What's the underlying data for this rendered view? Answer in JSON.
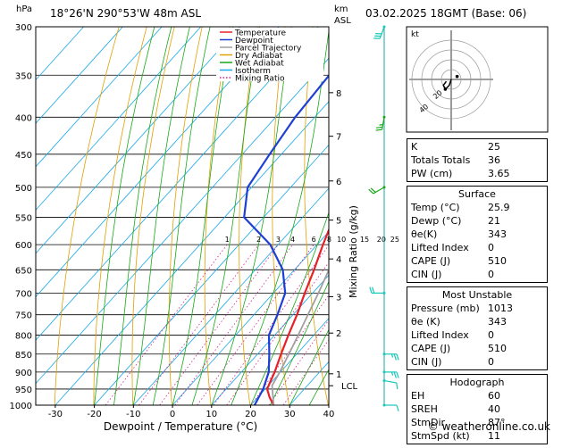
{
  "header": {
    "hpa_label": "hPa",
    "location": "18°26'N  290°53'W  48m  ASL",
    "km_label": "km",
    "asl_label": "ASL",
    "datetime": "03.02.2025  18GMT  (Base: 06)"
  },
  "chart_data": {
    "type": "line",
    "chart_kind": "skew-T log-P sounding",
    "xlabel": "Dewpoint / Temperature (°C)",
    "ylabel_right": "Mixing Ratio (g/kg)",
    "xlim": [
      -35,
      40
    ],
    "ylim_hpa": [
      1000,
      300
    ],
    "pressure_ticks": [
      300,
      350,
      400,
      450,
      500,
      550,
      600,
      650,
      700,
      750,
      800,
      850,
      900,
      950,
      1000
    ],
    "temperature_ticks": [
      -30,
      -20,
      -10,
      0,
      10,
      20,
      30,
      40
    ],
    "height_km_ticks": [
      {
        "km": "1",
        "p": 905
      },
      {
        "km": "2",
        "p": 795
      },
      {
        "km": "3",
        "p": 708
      },
      {
        "km": "4",
        "p": 628
      },
      {
        "km": "5",
        "p": 555
      },
      {
        "km": "6",
        "p": 490
      },
      {
        "km": "7",
        "p": 425
      },
      {
        "km": "8",
        "p": 370
      }
    ],
    "lcl": {
      "label": "LCL",
      "p": 940
    },
    "mixing_ratio_labels": [
      "1",
      "2",
      "3",
      "4",
      "6",
      "8",
      "10",
      "15",
      "20",
      "25"
    ],
    "mixing_ratio_values": [
      1,
      2,
      3,
      4,
      6,
      8,
      10,
      15,
      20,
      25
    ],
    "legend": [
      {
        "name": "Temperature",
        "color": "#e8202a"
      },
      {
        "name": "Dewpoint",
        "color": "#1f3fd4"
      },
      {
        "name": "Parcel Trajectory",
        "color": "#a0a0a0"
      },
      {
        "name": "Dry Adiabat",
        "color": "#e0a000"
      },
      {
        "name": "Wet Adiabat",
        "color": "#18a818"
      },
      {
        "name": "Isotherm",
        "color": "#18a8e8"
      },
      {
        "name": "Mixing Ratio",
        "color": "#d8208c"
      }
    ],
    "series": [
      {
        "name": "Temperature",
        "color": "#e8202a",
        "points": [
          [
            1000,
            25.9
          ],
          [
            975,
            23
          ],
          [
            950,
            20.5
          ],
          [
            925,
            19.5
          ],
          [
            900,
            18.5
          ],
          [
            850,
            16
          ],
          [
            800,
            13.5
          ],
          [
            750,
            11
          ],
          [
            700,
            8
          ],
          [
            650,
            5
          ],
          [
            600,
            1.5
          ],
          [
            550,
            -2
          ],
          [
            500,
            -6
          ],
          [
            450,
            -11
          ],
          [
            400,
            -17
          ],
          [
            350,
            -24
          ],
          [
            300,
            -32
          ]
        ]
      },
      {
        "name": "Dewpoint",
        "color": "#1f3fd4",
        "points": [
          [
            1000,
            21
          ],
          [
            950,
            19.5
          ],
          [
            900,
            17
          ],
          [
            850,
            13
          ],
          [
            800,
            8.5
          ],
          [
            750,
            6
          ],
          [
            700,
            3
          ],
          [
            650,
            -3
          ],
          [
            600,
            -12
          ],
          [
            550,
            -25
          ],
          [
            500,
            -31
          ],
          [
            450,
            -33
          ],
          [
            400,
            -35
          ],
          [
            350,
            -36
          ],
          [
            300,
            -38
          ]
        ]
      },
      {
        "name": "Parcel Trajectory",
        "color": "#a0a0a0",
        "points": [
          [
            1000,
            25.9
          ],
          [
            940,
            21
          ],
          [
            900,
            19.8
          ],
          [
            850,
            18
          ],
          [
            800,
            16
          ],
          [
            750,
            13.8
          ],
          [
            700,
            11.5
          ],
          [
            650,
            8.8
          ],
          [
            600,
            5.8
          ],
          [
            550,
            2.5
          ],
          [
            500,
            -1.5
          ],
          [
            450,
            -6
          ],
          [
            400,
            -11.5
          ],
          [
            350,
            -18
          ],
          [
            300,
            -26
          ]
        ]
      }
    ]
  },
  "hodograph": {
    "label": "kt",
    "ring_labels": [
      "20",
      "40"
    ],
    "points_uv": [
      [
        0,
        0
      ],
      [
        -2,
        -6
      ],
      [
        -6,
        -10
      ],
      [
        -8,
        -6
      ],
      [
        -5,
        -2
      ]
    ],
    "storm_motion": [
      6,
      3
    ],
    "color": "#000000"
  },
  "wind_barbs": [
    {
      "p": 300,
      "dir": 200,
      "spd": 30,
      "color": "#18c8b8"
    },
    {
      "p": 400,
      "dir": 190,
      "spd": 15,
      "color": "#18a818"
    },
    {
      "p": 500,
      "dir": 240,
      "spd": 20,
      "color": "#18a818"
    },
    {
      "p": 700,
      "dir": 270,
      "spd": 20,
      "color": "#18c8b8"
    },
    {
      "p": 850,
      "dir": 90,
      "spd": 15,
      "color": "#18c8b8"
    },
    {
      "p": 900,
      "dir": 90,
      "spd": 15,
      "color": "#18c8b8"
    },
    {
      "p": 925,
      "dir": 100,
      "spd": 10,
      "color": "#18c8b8"
    },
    {
      "p": 1000,
      "dir": 90,
      "spd": 10,
      "color": "#18c8b8"
    }
  ],
  "indices": {
    "top": [
      {
        "label": "K",
        "value": "25"
      },
      {
        "label": "Totals Totals",
        "value": "36"
      },
      {
        "label": "PW (cm)",
        "value": "3.65"
      }
    ],
    "surface": {
      "title": "Surface",
      "rows": [
        {
          "label": "Temp (°C)",
          "value": "25.9"
        },
        {
          "label": "Dewp (°C)",
          "value": "21"
        },
        {
          "label": "θe(K)",
          "value": "343"
        },
        {
          "label": "Lifted Index",
          "value": "0"
        },
        {
          "label": "CAPE (J)",
          "value": "510"
        },
        {
          "label": "CIN (J)",
          "value": "0"
        }
      ]
    },
    "most_unstable": {
      "title": "Most Unstable",
      "rows": [
        {
          "label": "Pressure (mb)",
          "value": "1013"
        },
        {
          "label": "θe (K)",
          "value": "343"
        },
        {
          "label": "Lifted Index",
          "value": "0"
        },
        {
          "label": "CAPE (J)",
          "value": "510"
        },
        {
          "label": "CIN (J)",
          "value": "0"
        }
      ]
    },
    "hodograph_box": {
      "title": "Hodograph",
      "rows": [
        {
          "label": "EH",
          "value": "60"
        },
        {
          "label": "SREH",
          "value": "40"
        },
        {
          "label": "StmDir",
          "value": "87°"
        },
        {
          "label": "StmSpd (kt)",
          "value": "11"
        }
      ]
    }
  },
  "footer": {
    "copyright": "© weatheronline.co.uk"
  }
}
